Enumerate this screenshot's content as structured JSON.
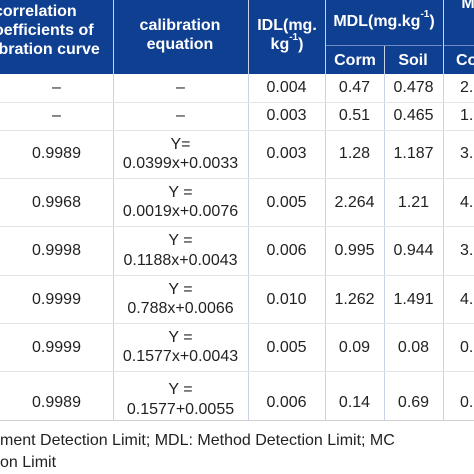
{
  "header": {
    "correlation": [
      "correlation",
      "oefficients of",
      "ibration curve"
    ],
    "calibration": [
      "calibration",
      "equation"
    ],
    "idl": [
      "IDL(mg.",
      "kg",
      "-1",
      ")"
    ],
    "mdl": [
      "MDL(mg.kg",
      "-1",
      ")"
    ],
    "mdl_sub": [
      "Corm",
      "Soil"
    ],
    "cut_top": "M",
    "cut_sub": "Co"
  },
  "rows": [
    {
      "corr": "–",
      "eq1": "–",
      "eq2": "",
      "idl": "0.004",
      "corm": "0.47",
      "soil": "0.478",
      "extra": "2."
    },
    {
      "corr": "–",
      "eq1": "–",
      "eq2": "",
      "idl": "0.003",
      "corm": "0.51",
      "soil": "0.465",
      "extra": "1."
    },
    {
      "corr": "0.9989",
      "eq1": "Y=",
      "eq2": "0.0399x+0.0033",
      "idl": "0.003",
      "corm": "1.28",
      "soil": "1.187",
      "extra": "3."
    },
    {
      "corr": "0.9968",
      "eq1": "Y =",
      "eq2": "0.0019x+0.0076",
      "idl": "0.005",
      "corm": "2.264",
      "soil": "1.21",
      "extra": "4."
    },
    {
      "corr": "0.9998",
      "eq1": "Y =",
      "eq2": "0.1188x+0.0043",
      "idl": "0.006",
      "corm": "0.995",
      "soil": "0.944",
      "extra": "3."
    },
    {
      "corr": "0.9999",
      "eq1": "Y =",
      "eq2": "0.788x+0.0066",
      "idl": "0.010",
      "corm": "1.262",
      "soil": "1.491",
      "extra": "4."
    },
    {
      "corr": "0.9999",
      "eq1": "Y =",
      "eq2": "0.1577x+0.0043",
      "idl": "0.005",
      "corm": "0.09",
      "soil": "0.08",
      "extra": "0."
    },
    {
      "corr": "0.9989",
      "eq1": "Y =",
      "eq2": "0.1577+0.0055",
      "idl": "0.006",
      "corm": "0.14",
      "soil": "0.69",
      "extra": "0."
    }
  ],
  "footnote": {
    "line1": "ment Detection Limit; MDL: Method Detection Limit; MC",
    "line2": "on Limit"
  }
}
